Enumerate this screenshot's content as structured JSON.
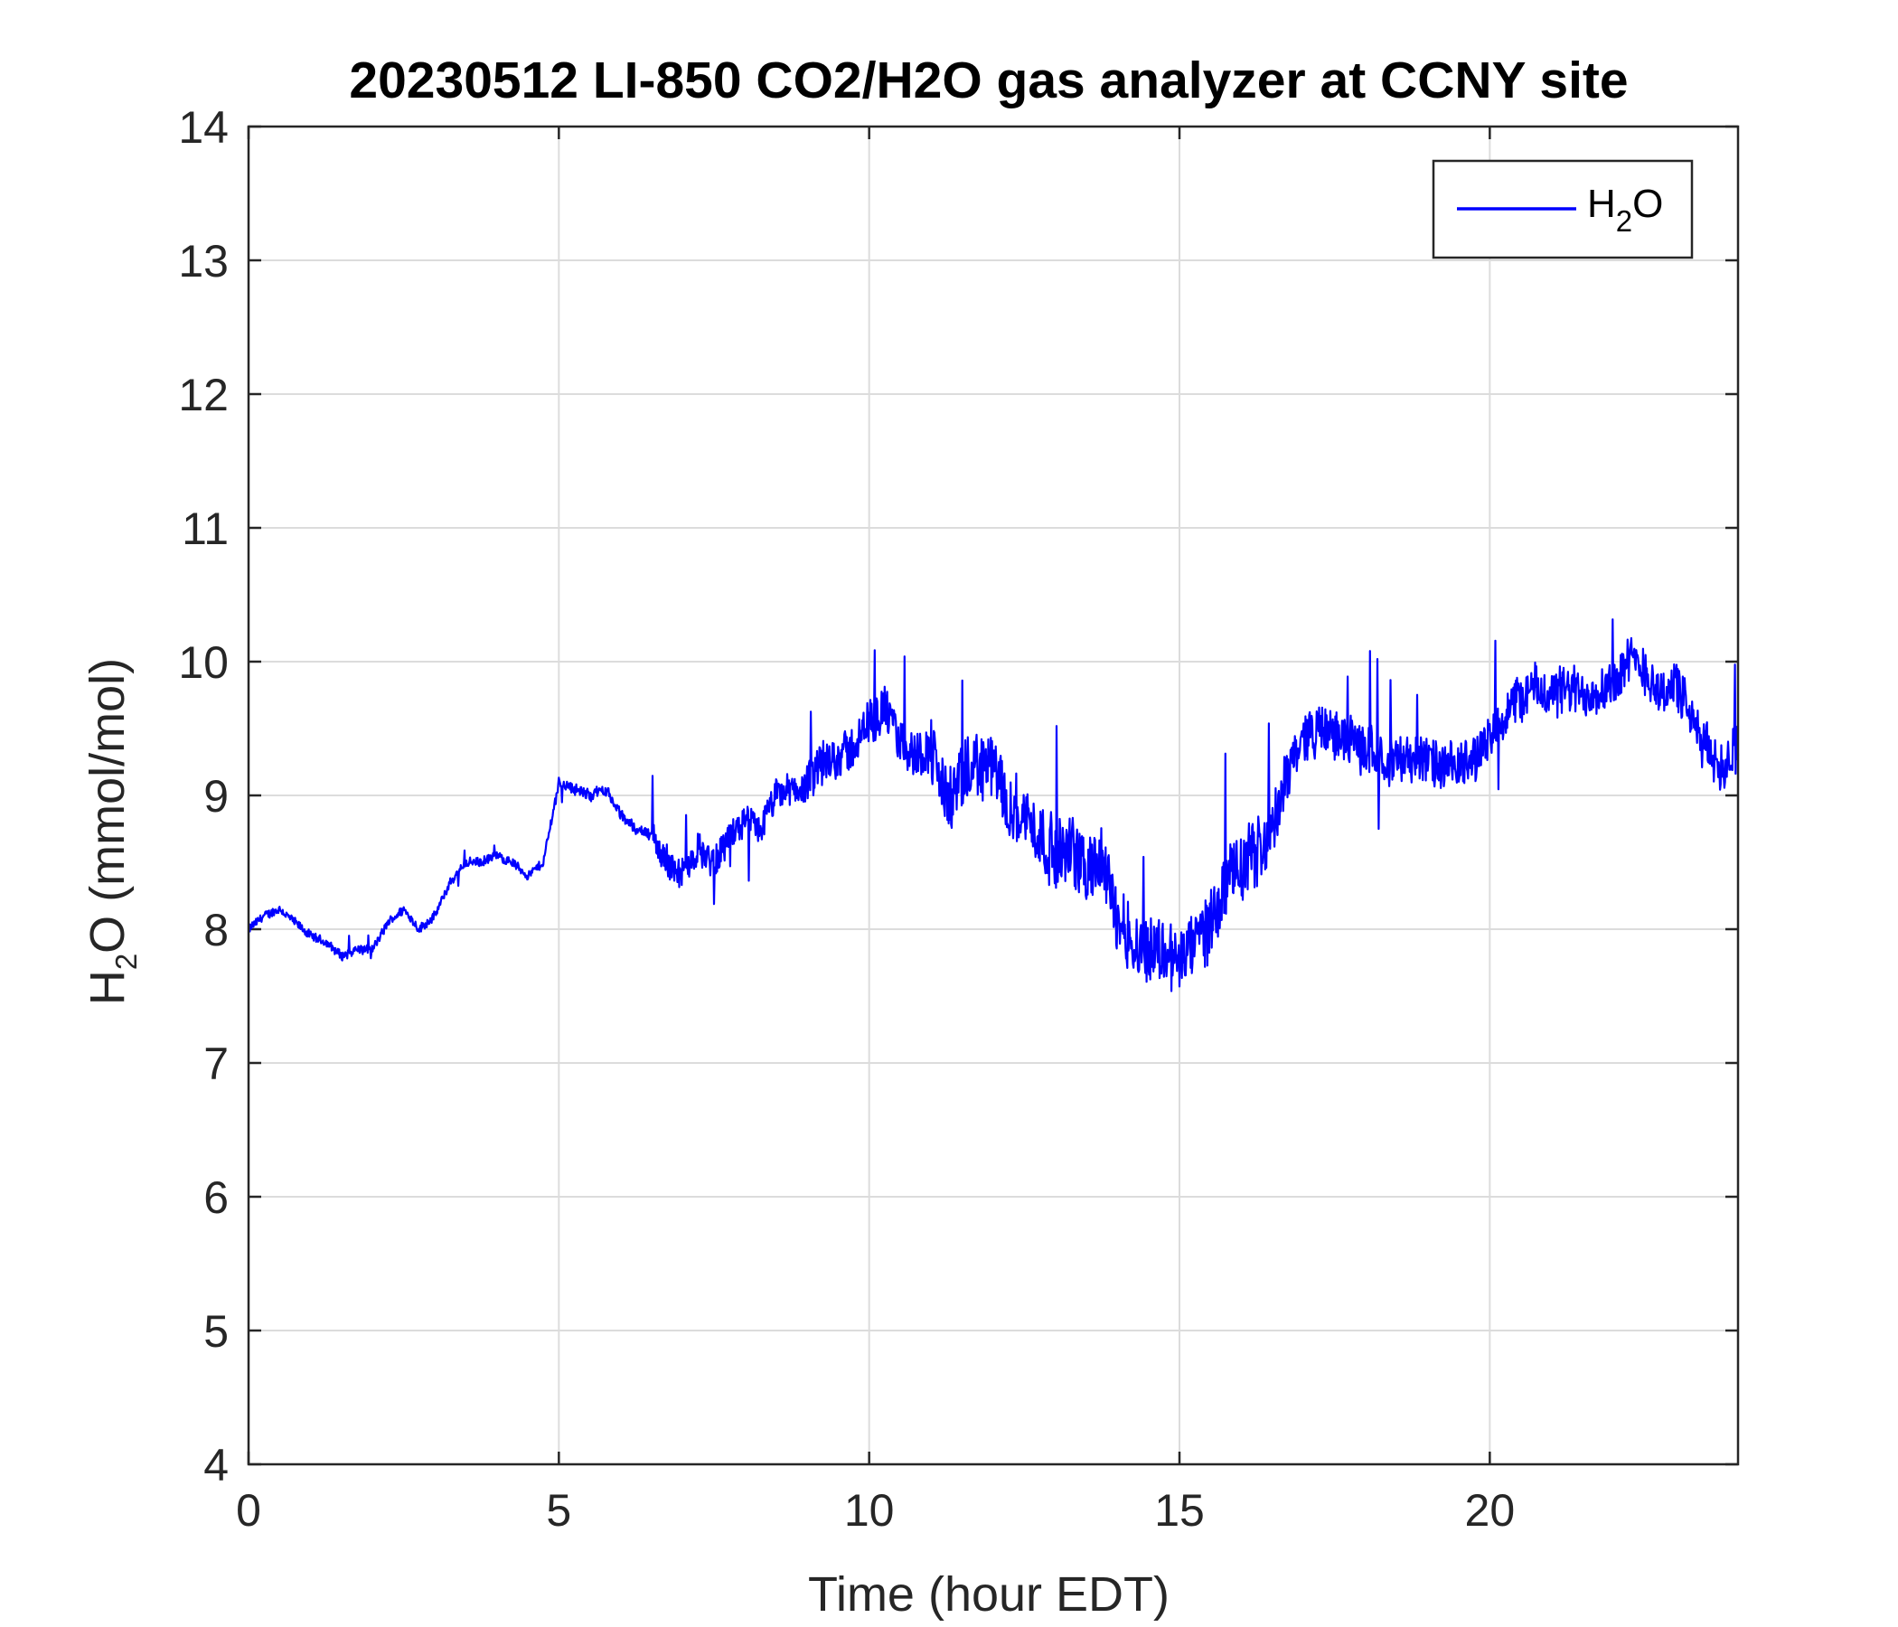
{
  "chart_data": {
    "type": "line",
    "title": "20230512 LI-850 CO2/H2O gas analyzer at CCNY site",
    "xlabel": "Time (hour EDT)",
    "ylabel": {
      "main": "H",
      "sub": "2",
      "rest": "O (mmol/mol)"
    },
    "xlim": [
      0,
      24
    ],
    "ylim": [
      4,
      14
    ],
    "xticks": [
      0,
      5,
      10,
      15,
      20
    ],
    "yticks": [
      4,
      5,
      6,
      7,
      8,
      9,
      10,
      11,
      12,
      13,
      14
    ],
    "grid": true,
    "legend_position": "top-right",
    "series": [
      {
        "name": {
          "main": "H",
          "sub": "2",
          "rest": "O"
        },
        "color": "#0000ff",
        "x": [
          0,
          0.25,
          0.5,
          0.75,
          1.0,
          1.25,
          1.5,
          1.75,
          2.0,
          2.25,
          2.5,
          2.75,
          3.0,
          3.25,
          3.5,
          3.75,
          4.0,
          4.25,
          4.5,
          4.75,
          5.0,
          5.25,
          5.5,
          5.75,
          6.0,
          6.25,
          6.5,
          6.75,
          7.0,
          7.25,
          7.5,
          7.75,
          8.0,
          8.25,
          8.5,
          8.75,
          9.0,
          9.25,
          9.5,
          9.75,
          10.0,
          10.25,
          10.5,
          10.75,
          11.0,
          11.25,
          11.5,
          11.75,
          12.0,
          12.25,
          12.5,
          12.75,
          13.0,
          13.25,
          13.5,
          13.75,
          14.0,
          14.25,
          14.5,
          14.75,
          15.0,
          15.25,
          15.5,
          15.75,
          16.0,
          16.25,
          16.5,
          16.75,
          17.0,
          17.25,
          17.5,
          17.75,
          18.0,
          18.25,
          18.5,
          18.75,
          19.0,
          19.25,
          19.5,
          19.75,
          20.0,
          20.25,
          20.5,
          20.75,
          21.0,
          21.25,
          21.5,
          21.75,
          22.0,
          22.25,
          22.5,
          22.75,
          23.0,
          23.25,
          23.5,
          23.75,
          24.0
        ],
        "y": [
          8.0,
          8.1,
          8.15,
          8.05,
          7.95,
          7.9,
          7.8,
          7.85,
          7.85,
          8.05,
          8.15,
          8.0,
          8.1,
          8.35,
          8.5,
          8.5,
          8.55,
          8.5,
          8.4,
          8.5,
          9.1,
          9.05,
          9.0,
          9.05,
          8.85,
          8.75,
          8.7,
          8.5,
          8.4,
          8.6,
          8.5,
          8.7,
          8.8,
          8.75,
          9.0,
          9.05,
          9.05,
          9.25,
          9.3,
          9.35,
          9.55,
          9.65,
          9.4,
          9.3,
          9.35,
          8.95,
          9.1,
          9.25,
          9.2,
          8.95,
          8.85,
          8.7,
          8.55,
          8.6,
          8.45,
          8.5,
          8.1,
          7.9,
          7.85,
          7.85,
          7.75,
          7.9,
          8.05,
          8.35,
          8.45,
          8.6,
          8.7,
          9.2,
          9.45,
          9.5,
          9.45,
          9.4,
          9.35,
          9.3,
          9.25,
          9.3,
          9.25,
          9.2,
          9.2,
          9.3,
          9.4,
          9.6,
          9.75,
          9.8,
          9.75,
          9.8,
          9.75,
          9.8,
          9.85,
          10.0,
          9.95,
          9.75,
          9.85,
          9.55,
          9.35,
          9.2,
          9.4
        ]
      }
    ]
  }
}
